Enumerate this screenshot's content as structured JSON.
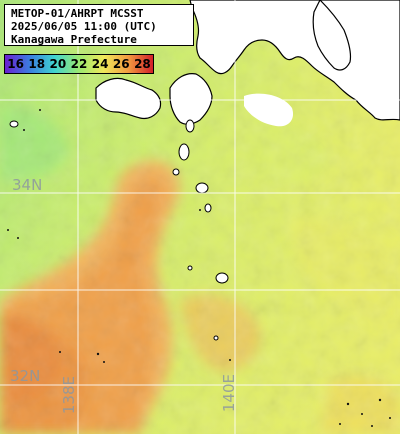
{
  "header": {
    "lines": [
      "METOP-01/AHRPT MCSST",
      "2025/06/05 11:00 (UTC)",
      "Kanagawa Prefecture"
    ]
  },
  "legend": {
    "values": [
      "16",
      "18",
      "20",
      "22",
      "24",
      "26",
      "28"
    ],
    "colors": [
      "#6a1fd0",
      "#3b7de0",
      "#3fd3d0",
      "#9be870",
      "#f0e85a",
      "#f29a40",
      "#d2202a"
    ]
  },
  "grid": {
    "lat_labels": [
      "34N",
      "32N"
    ],
    "lon_labels": [
      "138E",
      "140E"
    ]
  },
  "colors": {
    "land": "#ffffff",
    "cloud": "#ffffff",
    "coast": "#000000",
    "warm_current": "#f2a048",
    "warm_core": "#ee9440",
    "sea_cool": "#b8ec70",
    "sea_mid": "#e2ef6a",
    "grid": "#ffffff"
  }
}
